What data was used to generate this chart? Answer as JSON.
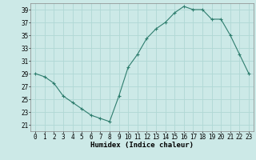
{
  "x": [
    0,
    1,
    2,
    3,
    4,
    5,
    6,
    7,
    8,
    9,
    10,
    11,
    12,
    13,
    14,
    15,
    16,
    17,
    18,
    19,
    20,
    21,
    22,
    23
  ],
  "y": [
    29,
    28.5,
    27.5,
    25.5,
    24.5,
    23.5,
    22.5,
    22,
    21.5,
    25.5,
    30,
    32,
    34.5,
    36,
    37,
    38.5,
    39.5,
    39,
    39,
    37.5,
    37.5,
    35,
    32,
    29
  ],
  "line_color": "#2e7d6e",
  "marker": "+",
  "bg_color": "#cce9e7",
  "grid_color": "#b0d8d5",
  "xlabel": "Humidex (Indice chaleur)",
  "ylim": [
    20,
    40
  ],
  "xlim": [
    -0.5,
    23.5
  ],
  "yticks": [
    21,
    23,
    25,
    27,
    29,
    31,
    33,
    35,
    37,
    39
  ],
  "xticks": [
    0,
    1,
    2,
    3,
    4,
    5,
    6,
    7,
    8,
    9,
    10,
    11,
    12,
    13,
    14,
    15,
    16,
    17,
    18,
    19,
    20,
    21,
    22,
    23
  ],
  "xlabel_fontsize": 6.5,
  "tick_fontsize": 5.5
}
